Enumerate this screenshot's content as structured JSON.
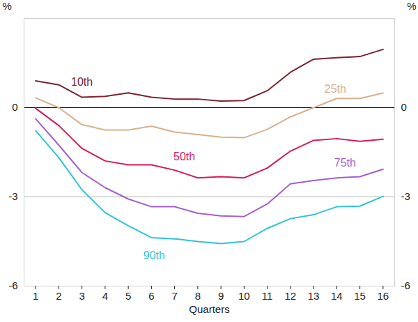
{
  "chart_data": {
    "type": "line",
    "x": [
      1,
      2,
      3,
      4,
      5,
      6,
      7,
      8,
      9,
      10,
      11,
      12,
      13,
      14,
      15,
      16
    ],
    "xlabel": "Quarters",
    "ylabel": "%",
    "xlim": [
      0.5,
      16.5
    ],
    "xticks": [
      1,
      2,
      3,
      4,
      5,
      6,
      7,
      8,
      9,
      10,
      11,
      12,
      13,
      14,
      15,
      16
    ],
    "ylim": [
      -6,
      3
    ],
    "yticks": [
      -6,
      -3,
      0
    ],
    "grid": true,
    "series": [
      {
        "name": "10th",
        "color": "#7b2230",
        "values": [
          0.9,
          0.77,
          0.35,
          0.38,
          0.5,
          0.35,
          0.29,
          0.29,
          0.22,
          0.24,
          0.57,
          1.19,
          1.63,
          1.68,
          1.72,
          1.96
        ]
      },
      {
        "name": "25th",
        "color": "#d9b08c",
        "values": [
          0.33,
          0,
          -0.57,
          -0.75,
          -0.75,
          -0.62,
          -0.82,
          -0.9,
          -0.99,
          -1.01,
          -0.73,
          -0.31,
          0,
          0.31,
          0.31,
          0.49
        ]
      },
      {
        "name": "50th",
        "color": "#d6195e",
        "values": [
          -0.02,
          -0.6,
          -1.37,
          -1.79,
          -1.92,
          -1.92,
          -2.1,
          -2.36,
          -2.32,
          -2.36,
          -2.03,
          -1.46,
          -1.1,
          -1.04,
          -1.13,
          -1.06
        ]
      },
      {
        "name": "75th",
        "color": "#a35fcf",
        "values": [
          -0.37,
          -1.26,
          -2.18,
          -2.69,
          -3.07,
          -3.33,
          -3.33,
          -3.55,
          -3.64,
          -3.66,
          -3.24,
          -2.56,
          -2.45,
          -2.36,
          -2.32,
          -2.07
        ]
      },
      {
        "name": "90th",
        "color": "#2ec4d6",
        "values": [
          -0.77,
          -1.68,
          -2.76,
          -3.53,
          -3.97,
          -4.37,
          -4.41,
          -4.5,
          -4.57,
          -4.5,
          -4.06,
          -3.73,
          -3.6,
          -3.33,
          -3.31,
          -2.98
        ]
      }
    ]
  }
}
